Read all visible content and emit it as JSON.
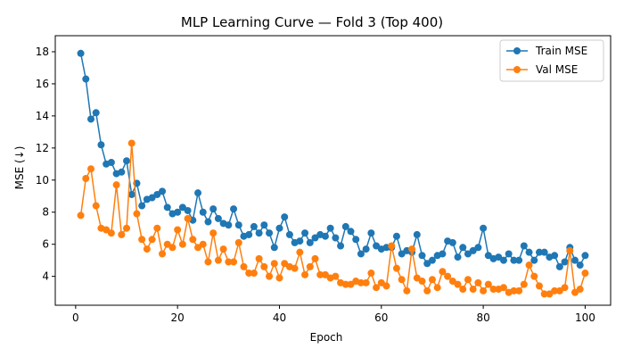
{
  "chart_data": {
    "type": "line",
    "title": "MLP Learning Curve — Fold 3 (Top 400)",
    "xlabel": "Epoch",
    "ylabel": "MSE (↓)",
    "xlim": [
      -4,
      105
    ],
    "ylim": [
      2.2,
      19.0
    ],
    "xticks": [
      0,
      20,
      40,
      60,
      80,
      100
    ],
    "yticks": [
      4,
      6,
      8,
      10,
      12,
      14,
      16,
      18
    ],
    "grid": false,
    "legend_position": "top-right",
    "x": [
      1,
      2,
      3,
      4,
      5,
      6,
      7,
      8,
      9,
      10,
      11,
      12,
      13,
      14,
      15,
      16,
      17,
      18,
      19,
      20,
      21,
      22,
      23,
      24,
      25,
      26,
      27,
      28,
      29,
      30,
      31,
      32,
      33,
      34,
      35,
      36,
      37,
      38,
      39,
      40,
      41,
      42,
      43,
      44,
      45,
      46,
      47,
      48,
      49,
      50,
      51,
      52,
      53,
      54,
      55,
      56,
      57,
      58,
      59,
      60,
      61,
      62,
      63,
      64,
      65,
      66,
      67,
      68,
      69,
      70,
      71,
      72,
      73,
      74,
      75,
      76,
      77,
      78,
      79,
      80,
      81,
      82,
      83,
      84,
      85,
      86,
      87,
      88,
      89,
      90,
      91,
      92,
      93,
      94,
      95,
      96,
      97,
      98,
      99,
      100
    ],
    "series": [
      {
        "name": "Train MSE",
        "color": "#1f77b4",
        "values": [
          17.9,
          16.3,
          13.8,
          14.2,
          12.2,
          11.0,
          11.1,
          10.4,
          10.5,
          11.2,
          9.1,
          9.8,
          8.4,
          8.8,
          8.9,
          9.1,
          9.3,
          8.3,
          7.9,
          8.0,
          8.3,
          8.1,
          7.5,
          9.2,
          8.0,
          7.4,
          8.2,
          7.6,
          7.3,
          7.2,
          8.2,
          7.2,
          6.5,
          6.6,
          7.1,
          6.7,
          7.2,
          6.7,
          5.8,
          7.0,
          7.7,
          6.6,
          6.1,
          6.2,
          6.7,
          6.1,
          6.4,
          6.6,
          6.5,
          7.0,
          6.4,
          5.9,
          7.1,
          6.8,
          6.3,
          5.4,
          5.7,
          6.7,
          5.9,
          5.7,
          5.8,
          5.8,
          6.5,
          5.4,
          5.6,
          5.5,
          6.6,
          5.3,
          4.8,
          5.0,
          5.3,
          5.4,
          6.2,
          6.1,
          5.2,
          5.8,
          5.4,
          5.6,
          5.8,
          7.0,
          5.3,
          5.1,
          5.2,
          5.0,
          5.4,
          5.0,
          5.0,
          5.9,
          5.5,
          5.0,
          5.5,
          5.5,
          5.2,
          5.3,
          4.6,
          4.9,
          5.8,
          5.0,
          4.7,
          5.3
        ]
      },
      {
        "name": "Val MSE",
        "color": "#ff7f0e",
        "values": [
          7.8,
          10.1,
          10.7,
          8.4,
          7.0,
          6.9,
          6.7,
          9.7,
          6.6,
          7.0,
          12.3,
          7.9,
          6.3,
          5.7,
          6.3,
          7.0,
          5.4,
          6.0,
          5.8,
          6.9,
          6.0,
          7.6,
          6.3,
          5.8,
          6.0,
          4.9,
          6.7,
          5.0,
          5.7,
          4.9,
          4.9,
          6.1,
          4.6,
          4.2,
          4.2,
          5.1,
          4.6,
          4.0,
          4.8,
          3.9,
          4.8,
          4.6,
          4.5,
          5.5,
          4.1,
          4.6,
          5.1,
          4.1,
          4.1,
          3.9,
          4.0,
          3.6,
          3.5,
          3.5,
          3.7,
          3.6,
          3.6,
          4.2,
          3.3,
          3.6,
          3.4,
          5.9,
          4.5,
          3.8,
          3.1,
          5.7,
          3.9,
          3.7,
          3.1,
          3.8,
          3.3,
          4.3,
          4.0,
          3.7,
          3.5,
          3.2,
          3.8,
          3.2,
          3.6,
          3.1,
          3.5,
          3.2,
          3.2,
          3.3,
          3.0,
          3.1,
          3.1,
          3.5,
          4.7,
          4.0,
          3.4,
          2.9,
          2.9,
          3.1,
          3.1,
          3.3,
          5.6,
          3.0,
          3.2,
          4.2
        ]
      }
    ]
  }
}
